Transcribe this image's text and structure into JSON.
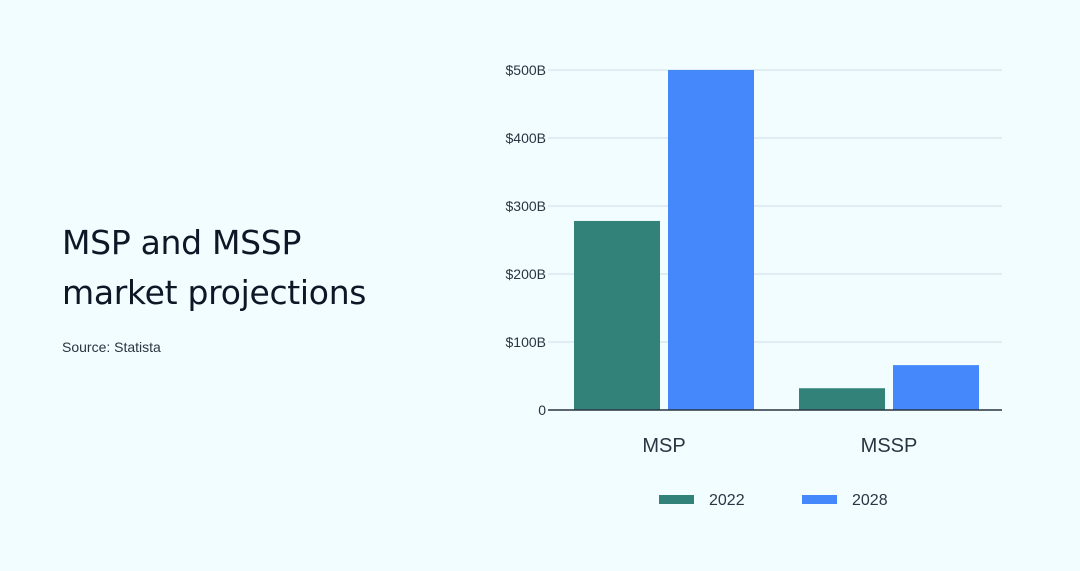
{
  "page": {
    "title_lines": [
      "MSP and MSSP",
      "market projections"
    ],
    "source": "Source: Statista"
  },
  "colors": {
    "background": "#f1fdff",
    "gridline": "#d7e6ec",
    "axis": "#2b3441",
    "series_2022": "#32827a",
    "series_2028": "#4488fb"
  },
  "chart_data": {
    "type": "bar",
    "title": "MSP and MSSP market projections",
    "categories": [
      "MSP",
      "MSSP"
    ],
    "series": [
      {
        "name": "2022",
        "values": [
          278,
          32
        ],
        "color": "#32827a"
      },
      {
        "name": "2028",
        "values": [
          500,
          66
        ],
        "color": "#4488fb"
      }
    ],
    "ylim": [
      0,
      500
    ],
    "y_ticks": [
      0,
      100,
      200,
      300,
      400,
      500
    ],
    "y_tick_labels": [
      "0",
      "$100B",
      "$200B",
      "$300B",
      "$400B",
      "$500B"
    ],
    "unit": "USD billions",
    "grid": true,
    "legend_position": "bottom-center"
  }
}
